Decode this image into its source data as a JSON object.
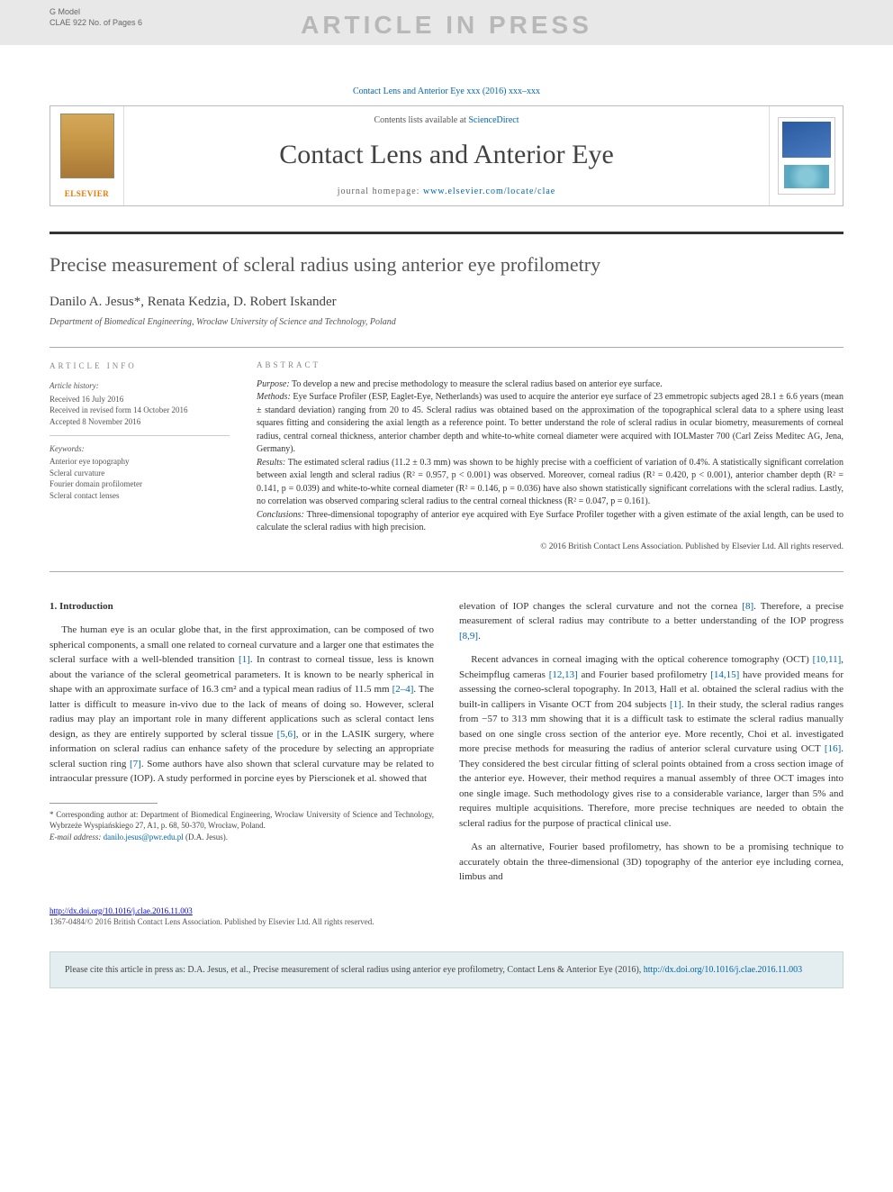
{
  "watermark": {
    "gmodel_line1": "G Model",
    "gmodel_line2": "CLAE 922 No. of Pages 6",
    "text": "ARTICLE IN PRESS"
  },
  "journal_ref": "Contact Lens and Anterior Eye xxx (2016) xxx–xxx",
  "banner": {
    "contents_prefix": "Contents lists available at ",
    "contents_link": "ScienceDirect",
    "journal_name": "Contact Lens and Anterior Eye",
    "homepage_prefix": "journal homepage: ",
    "homepage_url": "www.elsevier.com/locate/clae",
    "publisher": "ELSEVIER"
  },
  "article": {
    "title": "Precise measurement of scleral radius using anterior eye profilometry",
    "authors_html": "Danilo A. Jesus*, Renata Kedzia, D. Robert Iskander",
    "affiliation": "Department of Biomedical Engineering, Wrocław University of Science and Technology, Poland"
  },
  "article_info": {
    "heading": "ARTICLE INFO",
    "history_head": "Article history:",
    "received": "Received 16 July 2016",
    "revised": "Received in revised form 14 October 2016",
    "accepted": "Accepted 8 November 2016",
    "keywords_head": "Keywords:",
    "kw1": "Anterior eye topography",
    "kw2": "Scleral curvature",
    "kw3": "Fourier domain profilometer",
    "kw4": "Scleral contact lenses"
  },
  "abstract": {
    "heading": "ABSTRACT",
    "purpose_label": "Purpose:",
    "purpose": " To develop a new and precise methodology to measure the scleral radius based on anterior eye surface.",
    "methods_label": "Methods:",
    "methods": " Eye Surface Profiler (ESP, Eaglet-Eye, Netherlands) was used to acquire the anterior eye surface of 23 emmetropic subjects aged 28.1 ± 6.6 years (mean ± standard deviation) ranging from 20 to 45. Scleral radius was obtained based on the approximation of the topographical scleral data to a sphere using least squares fitting and considering the axial length as a reference point. To better understand the role of scleral radius in ocular biometry, measurements of corneal radius, central corneal thickness, anterior chamber depth and white-to-white corneal diameter were acquired with IOLMaster 700 (Carl Zeiss Meditec AG, Jena, Germany).",
    "results_label": "Results:",
    "results": " The estimated scleral radius (11.2 ± 0.3 mm) was shown to be highly precise with a coefficient of variation of 0.4%. A statistically significant correlation between axial length and scleral radius (R² = 0.957, p < 0.001) was observed. Moreover, corneal radius (R² = 0.420, p < 0.001), anterior chamber depth (R² = 0.141, p = 0.039) and white-to-white corneal diameter (R² = 0.146, p = 0.036) have also shown statistically significant correlations with the scleral radius. Lastly, no correlation was observed comparing scleral radius to the central corneal thickness (R² = 0.047, p = 0.161).",
    "conclusions_label": "Conclusions:",
    "conclusions": " Three-dimensional topography of anterior eye acquired with Eye Surface Profiler together with a given estimate of the axial length, can be used to calculate the scleral radius with high precision.",
    "copyright": "© 2016 British Contact Lens Association. Published by Elsevier Ltd. All rights reserved."
  },
  "body": {
    "section1_head": "1. Introduction",
    "p1_a": "The human eye is an ocular globe that, in the first approximation, can be composed of two spherical components, a small one related to corneal curvature and a larger one that estimates the scleral surface with a well-blended transition ",
    "ref1": "[1]",
    "p1_b": ". In contrast to corneal tissue, less is known about the variance of the scleral geometrical parameters. It is known to be nearly spherical in shape with an approximate surface of 16.3 cm² and a typical mean radius of 11.5 mm ",
    "ref2_4": "[2–4]",
    "p1_c": ". The latter is difficult to measure in-vivo due to the lack of means of doing so. However, scleral radius may play an important role in many different applications such as scleral contact lens design, as they are entirely supported by scleral tissue ",
    "ref5_6": "[5,6]",
    "p1_d": ", or in the LASIK surgery, where information on scleral radius can enhance safety of the procedure by selecting an appropriate scleral suction ring ",
    "ref7": "[7]",
    "p1_e": ". Some authors have also shown that scleral curvature may be related to intraocular pressure (IOP). A study performed in porcine eyes by Pierscionek et al. showed that",
    "p2_a": "elevation of IOP changes the scleral curvature and not the cornea ",
    "ref8": "[8]",
    "p2_b": ". Therefore, a precise measurement of scleral radius may contribute to a better understanding of the IOP progress ",
    "ref8_9": "[8,9]",
    "p2_c": ".",
    "p3_a": "Recent advances in corneal imaging with the optical coherence tomography (OCT) ",
    "ref10_11": "[10,11]",
    "p3_b": ", Scheimpflug cameras ",
    "ref12_13": "[12,13]",
    "p3_c": " and Fourier based profilometry ",
    "ref14_15": "[14,15]",
    "p3_d": " have provided means for assessing the corneo-scleral topography. In 2013, Hall et al. obtained the scleral radius with the built-in callipers in Visante OCT from 204 subjects ",
    "ref1b": "[1]",
    "p3_e": ". In their study, the scleral radius ranges from −57 to 313 mm showing that it is a difficult task to estimate the scleral radius manually based on one single cross section of the anterior eye. More recently, Choi et al. investigated more precise methods for measuring the radius of anterior scleral curvature using OCT ",
    "ref16": "[16]",
    "p3_f": ". They considered the best circular fitting of scleral points obtained from a cross section image of the anterior eye. However, their method requires a manual assembly of three OCT images into one single image. Such methodology gives rise to a considerable variance, larger than 5% and requires multiple acquisitions. Therefore, more precise techniques are needed to obtain the scleral radius for the purpose of practical clinical use.",
    "p4": "As an alternative, Fourier based profilometry, has shown to be a promising technique to accurately obtain the three-dimensional (3D) topography of the anterior eye including cornea, limbus and"
  },
  "footnote": {
    "corr": "* Corresponding author at: Department of Biomedical Engineering, Wrocław University of Science and Technology, Wybrzeże Wyspiańskiego 27, A1, p. 68, 50-370, Wrocław, Poland.",
    "email_label": "E-mail address: ",
    "email": "danilo.jesus@pwr.edu.pl",
    "email_suffix": " (D.A. Jesus)."
  },
  "doi": {
    "url": "http://dx.doi.org/10.1016/j.clae.2016.11.003",
    "line2": "1367-0484/© 2016 British Contact Lens Association. Published by Elsevier Ltd. All rights reserved."
  },
  "citebox": {
    "prefix": "Please cite this article in press as: D.A. Jesus, et al., Precise measurement of scleral radius using anterior eye profilometry, Contact Lens & Anterior Eye (2016), ",
    "link": "http://dx.doi.org/10.1016/j.clae.2016.11.003"
  },
  "colors": {
    "link": "#0066aa",
    "watermark_bg": "#e8e8e8",
    "watermark_fg": "#b8b8b8",
    "elsevier_orange": "#ee7700",
    "citebox_bg": "#e4eef0"
  }
}
